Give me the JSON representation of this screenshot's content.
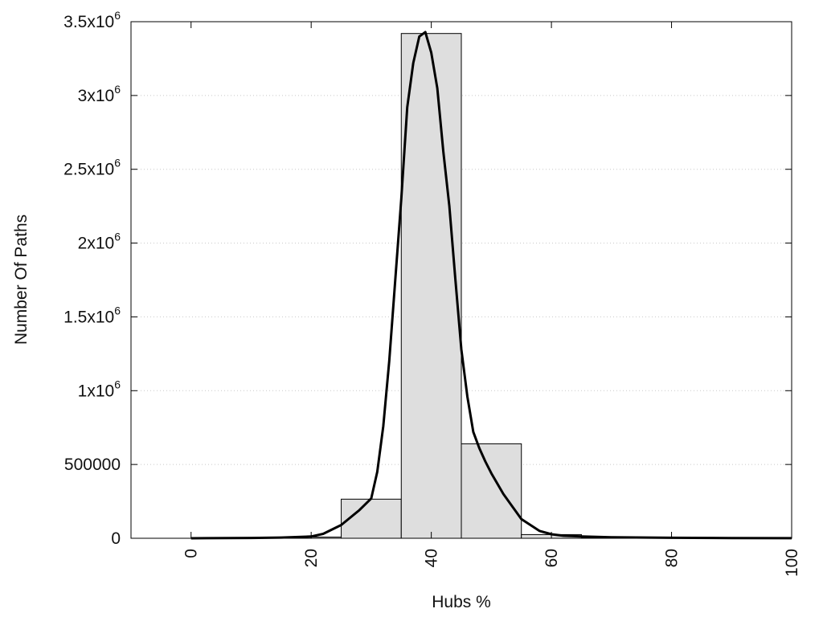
{
  "chart_data": {
    "type": "bar",
    "title": "",
    "xlabel": "Hubs %",
    "ylabel": "Number Of Paths",
    "xlim": [
      -10,
      100
    ],
    "ylim": [
      0,
      3500000
    ],
    "x_ticks": [
      0,
      20,
      40,
      60,
      80,
      100
    ],
    "y_ticks": [
      {
        "value": 0,
        "base": "0",
        "exp": ""
      },
      {
        "value": 500000,
        "base": "500000",
        "exp": ""
      },
      {
        "value": 1000000,
        "base": "1x10",
        "exp": "6"
      },
      {
        "value": 1500000,
        "base": "1.5x10",
        "exp": "6"
      },
      {
        "value": 2000000,
        "base": "2x10",
        "exp": "6"
      },
      {
        "value": 2500000,
        "base": "2.5x10",
        "exp": "6"
      },
      {
        "value": 3000000,
        "base": "3x10",
        "exp": "6"
      },
      {
        "value": 3500000,
        "base": "3.5x10",
        "exp": "6"
      }
    ],
    "grid": true,
    "bars": [
      {
        "center": 0,
        "width": 10,
        "value": 0
      },
      {
        "center": 10,
        "width": 10,
        "value": 0
      },
      {
        "center": 20,
        "width": 10,
        "value": 8000
      },
      {
        "center": 30,
        "width": 10,
        "value": 265000
      },
      {
        "center": 40,
        "width": 10,
        "value": 3420000
      },
      {
        "center": 50,
        "width": 10,
        "value": 640000
      },
      {
        "center": 60,
        "width": 10,
        "value": 25000
      },
      {
        "center": 70,
        "width": 10,
        "value": 3000
      },
      {
        "center": 80,
        "width": 10,
        "value": 0
      },
      {
        "center": 90,
        "width": 10,
        "value": 0
      }
    ],
    "series": [
      {
        "type": "line",
        "x": [
          0,
          10,
          15,
          20,
          22,
          25,
          28,
          30,
          31,
          32,
          33,
          34,
          35,
          36,
          37,
          38,
          39,
          40,
          41,
          42,
          43,
          44,
          45,
          46,
          47,
          48,
          49,
          50,
          52,
          55,
          58,
          60,
          62,
          65,
          70,
          80,
          90,
          100
        ],
        "y": [
          0,
          2000,
          5000,
          12000,
          30000,
          90000,
          190000,
          270000,
          450000,
          760000,
          1200000,
          1750000,
          2300000,
          2920000,
          3220000,
          3400000,
          3430000,
          3290000,
          3050000,
          2620000,
          2250000,
          1760000,
          1280000,
          960000,
          720000,
          610000,
          520000,
          440000,
          300000,
          130000,
          50000,
          27000,
          17000,
          12000,
          7000,
          3000,
          1500,
          600
        ]
      }
    ]
  }
}
